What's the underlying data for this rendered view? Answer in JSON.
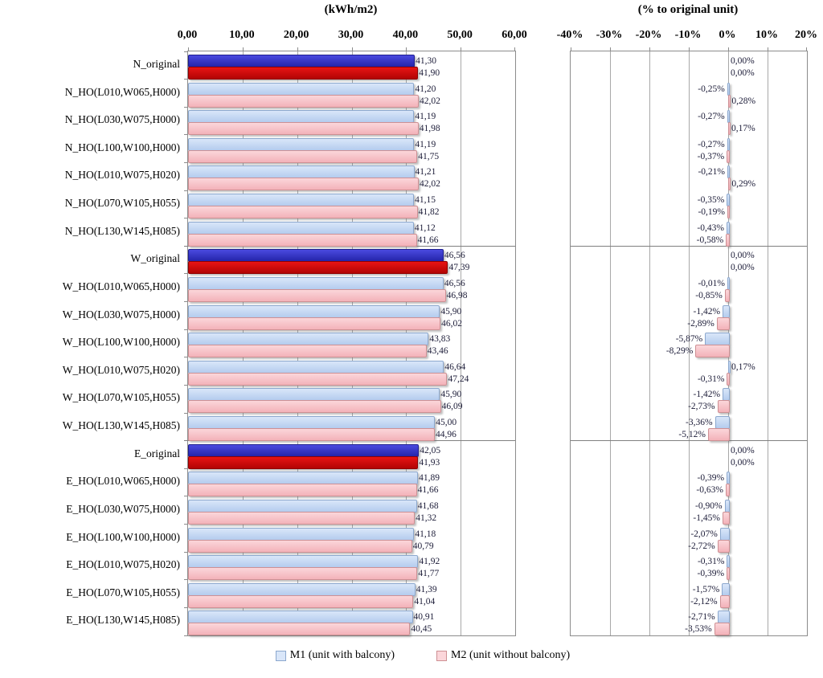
{
  "chart_data": {
    "type": "bar",
    "orientation": "horizontal",
    "legend_position": "bottom",
    "grid": true,
    "legend": [
      {
        "name": "M1",
        "label": "M1 (unit with balcony)"
      },
      {
        "name": "M2",
        "label": "M2 (unit without balcony)"
      }
    ],
    "colors": {
      "m1_original": {
        "fill_top": "#4A4ADF",
        "fill_bottom": "#2424AA",
        "border": "#1E1E8F"
      },
      "m2_original": {
        "fill_top": "#E81414",
        "fill_bottom": "#B20404",
        "border": "#8F0000"
      },
      "m1": {
        "fill_top": "#D9E6F9",
        "fill_bottom": "#B4CCEE",
        "border": "#8CA8CE"
      },
      "m2": {
        "fill_top": "#FBD6DA",
        "fill_bottom": "#F3B2B9",
        "border": "#CE9094"
      },
      "gridline": "#A8A8A8",
      "panel_border": "#8C8C8C",
      "label_text": "#1C1C38"
    },
    "panels": [
      {
        "title": "(kWh/m2)",
        "xlim": [
          0,
          60
        ],
        "ticks": [
          {
            "v": 0,
            "label": "0,00"
          },
          {
            "v": 10,
            "label": "10,00"
          },
          {
            "v": 20,
            "label": "20,00"
          },
          {
            "v": 30,
            "label": "30,00"
          },
          {
            "v": 40,
            "label": "40,00"
          },
          {
            "v": 50,
            "label": "50,00"
          },
          {
            "v": 60,
            "label": "60,00"
          }
        ]
      },
      {
        "title": "(% to original unit)",
        "xlim": [
          -40,
          20
        ],
        "ticks": [
          {
            "v": -40,
            "label": "-40%"
          },
          {
            "v": -30,
            "label": "-30%"
          },
          {
            "v": -20,
            "label": "-20%"
          },
          {
            "v": -10,
            "label": "-10%"
          },
          {
            "v": 0,
            "label": "0%"
          },
          {
            "v": 10,
            "label": "10%"
          },
          {
            "v": 20,
            "label": "20%"
          }
        ]
      }
    ],
    "groups": [
      {
        "name": "N",
        "rows": [
          {
            "label": "N_original",
            "original": true,
            "kwh": [
              41.3,
              41.9
            ],
            "kwh_labels": [
              "41,30",
              "41,90"
            ],
            "pct": [
              0,
              0
            ],
            "pct_labels": [
              "0,00%",
              "0,00%"
            ]
          },
          {
            "label": "N_HO(L010,W065,H000)",
            "original": false,
            "kwh": [
              41.2,
              42.02
            ],
            "kwh_labels": [
              "41,20",
              "42,02"
            ],
            "pct": [
              -0.25,
              0.28
            ],
            "pct_labels": [
              "-0,25%",
              "0,28%"
            ]
          },
          {
            "label": "N_HO(L030,W075,H000)",
            "original": false,
            "kwh": [
              41.19,
              41.98
            ],
            "kwh_labels": [
              "41,19",
              "41,98"
            ],
            "pct": [
              -0.27,
              0.17
            ],
            "pct_labels": [
              "-0,27%",
              "0,17%"
            ]
          },
          {
            "label": "N_HO(L100,W100,H000)",
            "original": false,
            "kwh": [
              41.19,
              41.75
            ],
            "kwh_labels": [
              "41,19",
              "41,75"
            ],
            "pct": [
              -0.27,
              -0.37
            ],
            "pct_labels": [
              "-0,27%",
              "-0,37%"
            ]
          },
          {
            "label": "N_HO(L010,W075,H020)",
            "original": false,
            "kwh": [
              41.21,
              42.02
            ],
            "kwh_labels": [
              "41,21",
              "42,02"
            ],
            "pct": [
              -0.21,
              0.29
            ],
            "pct_labels": [
              "-0,21%",
              "0,29%"
            ]
          },
          {
            "label": "N_HO(L070,W105,H055)",
            "original": false,
            "kwh": [
              41.15,
              41.82
            ],
            "kwh_labels": [
              "41,15",
              "41,82"
            ],
            "pct": [
              -0.35,
              -0.19
            ],
            "pct_labels": [
              "-0,35%",
              "-0,19%"
            ]
          },
          {
            "label": "N_HO(L130,W145,H085)",
            "original": false,
            "kwh": [
              41.12,
              41.66
            ],
            "kwh_labels": [
              "41,12",
              "41,66"
            ],
            "pct": [
              -0.43,
              -0.58
            ],
            "pct_labels": [
              "-0,43%",
              "-0,58%"
            ]
          }
        ]
      },
      {
        "name": "W",
        "rows": [
          {
            "label": "W_original",
            "original": true,
            "kwh": [
              46.56,
              47.39
            ],
            "kwh_labels": [
              "46,56",
              "47,39"
            ],
            "pct": [
              0,
              0
            ],
            "pct_labels": [
              "0,00%",
              "0,00%"
            ]
          },
          {
            "label": "W_HO(L010,W065,H000)",
            "original": false,
            "kwh": [
              46.56,
              46.98
            ],
            "kwh_labels": [
              "46,56",
              "46,98"
            ],
            "pct": [
              -0.01,
              -0.85
            ],
            "pct_labels": [
              "-0,01%",
              "-0,85%"
            ]
          },
          {
            "label": "W_HO(L030,W075,H000)",
            "original": false,
            "kwh": [
              45.9,
              46.02
            ],
            "kwh_labels": [
              "45,90",
              "46,02"
            ],
            "pct": [
              -1.42,
              -2.89
            ],
            "pct_labels": [
              "-1,42%",
              "-2,89%"
            ]
          },
          {
            "label": "W_HO(L100,W100,H000)",
            "original": false,
            "kwh": [
              43.83,
              43.46
            ],
            "kwh_labels": [
              "43,83",
              "43,46"
            ],
            "pct": [
              -5.87,
              -8.29
            ],
            "pct_labels": [
              "-5,87%",
              "-8,29%"
            ]
          },
          {
            "label": "W_HO(L010,W075,H020)",
            "original": false,
            "kwh": [
              46.64,
              47.24
            ],
            "kwh_labels": [
              "46,64",
              "47,24"
            ],
            "pct": [
              0.17,
              -0.31
            ],
            "pct_labels": [
              "0,17%",
              "-0,31%"
            ]
          },
          {
            "label": "W_HO(L070,W105,H055)",
            "original": false,
            "kwh": [
              45.9,
              46.09
            ],
            "kwh_labels": [
              "45,90",
              "46,09"
            ],
            "pct": [
              -1.42,
              -2.73
            ],
            "pct_labels": [
              "-1,42%",
              "-2,73%"
            ]
          },
          {
            "label": "W_HO(L130,W145,H085)",
            "original": false,
            "kwh": [
              45.0,
              44.96
            ],
            "kwh_labels": [
              "45,00",
              "44,96"
            ],
            "pct": [
              -3.36,
              -5.12
            ],
            "pct_labels": [
              "-3,36%",
              "-5,12%"
            ]
          }
        ]
      },
      {
        "name": "E",
        "rows": [
          {
            "label": "E_original",
            "original": true,
            "kwh": [
              42.05,
              41.93
            ],
            "kwh_labels": [
              "42,05",
              "41,93"
            ],
            "pct": [
              0,
              0
            ],
            "pct_labels": [
              "0,00%",
              "0,00%"
            ]
          },
          {
            "label": "E_HO(L010,W065,H000)",
            "original": false,
            "kwh": [
              41.89,
              41.66
            ],
            "kwh_labels": [
              "41,89",
              "41,66"
            ],
            "pct": [
              -0.39,
              -0.63
            ],
            "pct_labels": [
              "-0,39%",
              "-0,63%"
            ]
          },
          {
            "label": "E_HO(L030,W075,H000)",
            "original": false,
            "kwh": [
              41.68,
              41.32
            ],
            "kwh_labels": [
              "41,68",
              "41,32"
            ],
            "pct": [
              -0.9,
              -1.45
            ],
            "pct_labels": [
              "-0,90%",
              "-1,45%"
            ]
          },
          {
            "label": "E_HO(L100,W100,H000)",
            "original": false,
            "kwh": [
              41.18,
              40.79
            ],
            "kwh_labels": [
              "41,18",
              "40,79"
            ],
            "pct": [
              -2.07,
              -2.72
            ],
            "pct_labels": [
              "-2,07%",
              "-2,72%"
            ]
          },
          {
            "label": "E_HO(L010,W075,H020)",
            "original": false,
            "kwh": [
              41.92,
              41.77
            ],
            "kwh_labels": [
              "41,92",
              "41,77"
            ],
            "pct": [
              -0.31,
              -0.39
            ],
            "pct_labels": [
              "-0,31%",
              "-0,39%"
            ]
          },
          {
            "label": "E_HO(L070,W105,H055)",
            "original": false,
            "kwh": [
              41.39,
              41.04
            ],
            "kwh_labels": [
              "41,39",
              "41,04"
            ],
            "pct": [
              -1.57,
              -2.12
            ],
            "pct_labels": [
              "-1,57%",
              "-2,12%"
            ]
          },
          {
            "label": "E_HO(L130,W145,H085)",
            "original": false,
            "kwh": [
              40.91,
              40.45
            ],
            "kwh_labels": [
              "40,91",
              "40,45"
            ],
            "pct": [
              -2.71,
              -3.53
            ],
            "pct_labels": [
              "-2,71%",
              "-3,53%"
            ]
          }
        ]
      }
    ]
  }
}
